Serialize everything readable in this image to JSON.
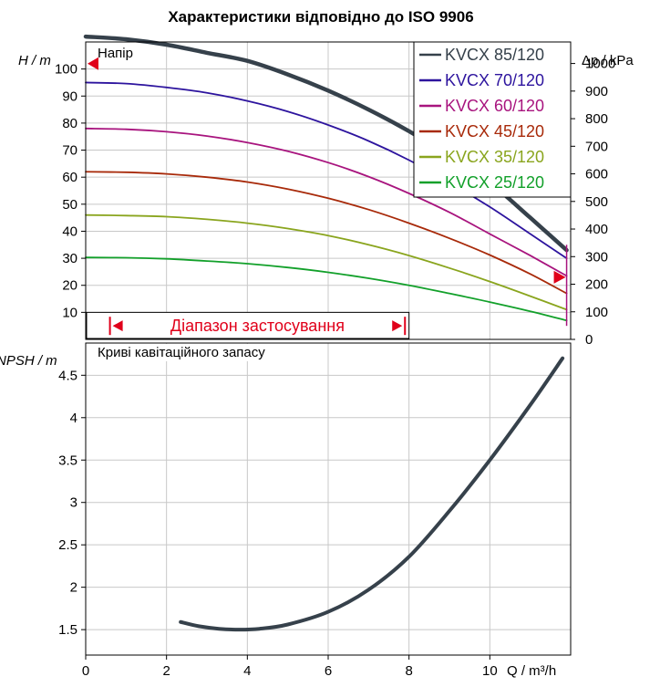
{
  "chart_data": [
    {
      "type": "line",
      "title": "Характеристики відповідно до ISO 9906",
      "panel_label": "Напір",
      "ylabel": "H / m",
      "ylabel_right": "Δp / kPa",
      "ylim": [
        0,
        110
      ],
      "yticks": [
        10,
        20,
        30,
        40,
        50,
        60,
        70,
        80,
        90,
        100
      ],
      "ylim_right": [
        0,
        1078
      ],
      "yticks_right": [
        0,
        100,
        200,
        300,
        400,
        500,
        600,
        700,
        800,
        900,
        1000
      ],
      "xlim": [
        0,
        12
      ],
      "grid": true,
      "legend_position": "top-right",
      "range_label": "Діапазон застосування",
      "range": [
        0.6,
        7.9
      ],
      "series": [
        {
          "name": "KVCX 85/120",
          "color": "#36414b",
          "width": 4.5,
          "x": [
            0,
            1,
            2,
            3,
            4,
            5,
            6,
            7,
            8,
            9,
            10,
            11,
            11.9
          ],
          "y": [
            112,
            111,
            109,
            106,
            103,
            98,
            92,
            85,
            77,
            68,
            58,
            45,
            33
          ]
        },
        {
          "name": "KVCX 70/120",
          "color": "#2d149e",
          "width": 1.8,
          "x": [
            0,
            1,
            2,
            3,
            4,
            5,
            6,
            7,
            8,
            9,
            10,
            11,
            11.9
          ],
          "y": [
            95,
            94.6,
            93.2,
            91.2,
            88.2,
            84.3,
            79.3,
            73.4,
            66.3,
            58,
            49,
            39,
            30
          ]
        },
        {
          "name": "KVCX 60/120",
          "color": "#a8147e",
          "width": 1.8,
          "x": [
            0,
            1,
            2,
            3,
            4,
            5,
            6,
            7,
            8,
            9,
            10,
            11,
            11.9
          ],
          "y": [
            78,
            77.7,
            76.8,
            75.2,
            72.8,
            69.6,
            65.4,
            60.2,
            54,
            47,
            39,
            31,
            23.5
          ]
        },
        {
          "name": "KVCX 45/120",
          "color": "#a82a0a",
          "width": 1.8,
          "x": [
            0,
            1,
            2,
            3,
            4,
            5,
            6,
            7,
            8,
            9,
            10,
            11,
            11.9
          ],
          "y": [
            62,
            61.8,
            61.2,
            60,
            58.2,
            55.6,
            52.2,
            48,
            43,
            37.4,
            31.2,
            24.2,
            17
          ]
        },
        {
          "name": "KVCX 35/120",
          "color": "#8aa51e",
          "width": 1.8,
          "x": [
            0,
            1,
            2,
            3,
            4,
            5,
            6,
            7,
            8,
            9,
            10,
            11,
            11.9
          ],
          "y": [
            46,
            45.8,
            45.4,
            44.4,
            43,
            41,
            38.4,
            35,
            31,
            26.4,
            21.4,
            16,
            11
          ]
        },
        {
          "name": "KVCX 25/120",
          "color": "#12a02a",
          "width": 1.8,
          "x": [
            0,
            1,
            2,
            3,
            4,
            5,
            6,
            7,
            8,
            9,
            10,
            11,
            11.9
          ],
          "y": [
            30.3,
            30.2,
            29.8,
            29,
            28,
            26.6,
            24.8,
            22.6,
            20,
            17,
            13.8,
            10.4,
            7
          ]
        }
      ]
    },
    {
      "type": "line",
      "panel_label": "Криві кавітаційного запасу",
      "ylabel": "NPSH / m",
      "xlabel": "Q / m³/h",
      "ylim": [
        1.2,
        4.88
      ],
      "yticks": [
        1.5,
        2,
        2.5,
        3,
        3.5,
        4,
        4.5
      ],
      "xlim": [
        0,
        12
      ],
      "xticks": [
        0,
        2,
        4,
        6,
        8,
        10
      ],
      "grid": true,
      "series": [
        {
          "color": "#36414b",
          "width": 4,
          "x": [
            2.35,
            2.8,
            3.3,
            3.8,
            4.3,
            5,
            6,
            7,
            8,
            9,
            10,
            11,
            11.8
          ],
          "y": [
            1.59,
            1.54,
            1.51,
            1.5,
            1.51,
            1.56,
            1.71,
            1.97,
            2.36,
            2.9,
            3.5,
            4.15,
            4.7
          ]
        }
      ]
    }
  ]
}
